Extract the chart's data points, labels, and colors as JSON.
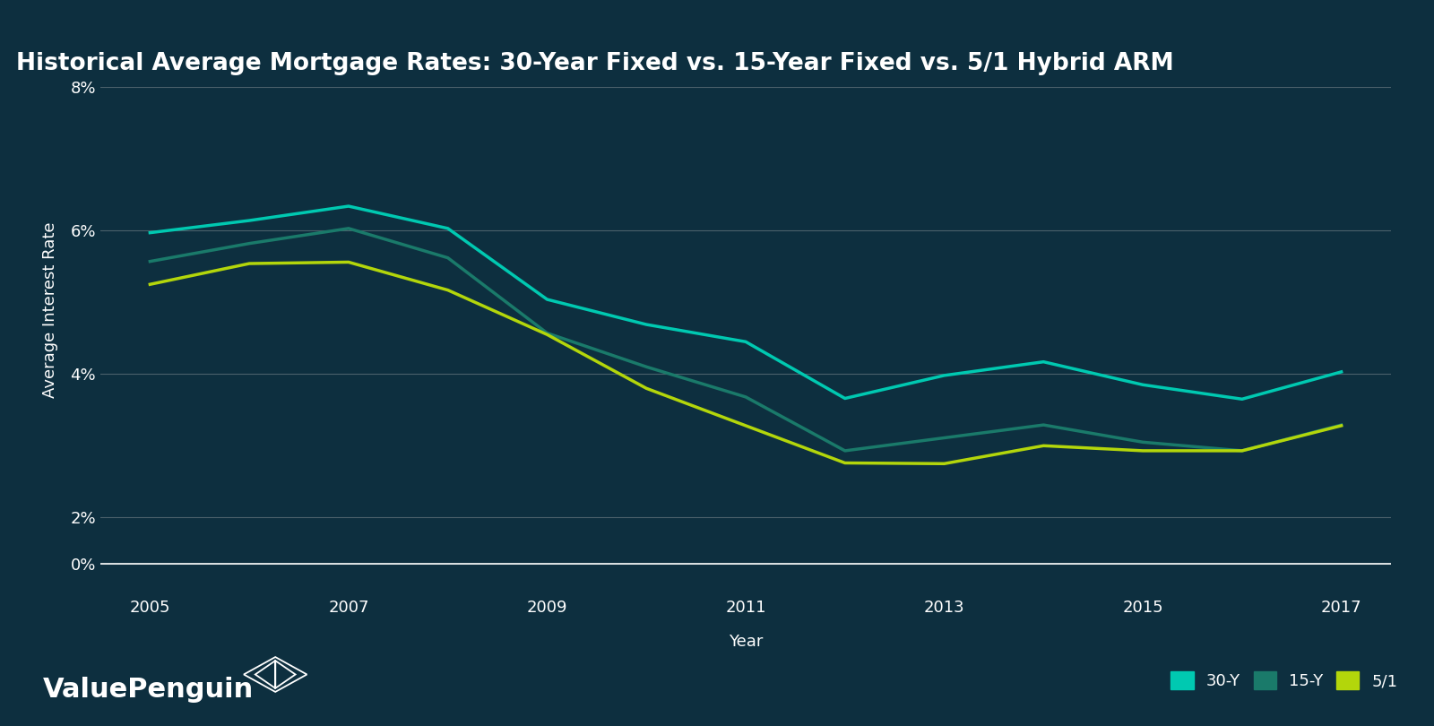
{
  "title": "Historical Average Mortgage Rates: 30-Year Fixed vs. 15-Year Fixed vs. 5/1 Hybrid ARM",
  "xlabel": "Year",
  "ylabel": "Average Interest Rate",
  "background_color": "#0d2f3f",
  "plot_bg_color": "#0d2f3f",
  "grid_color": "#c0c0c0",
  "text_color": "#ffffff",
  "years": [
    2005,
    2006,
    2007,
    2008,
    2009,
    2010,
    2011,
    2012,
    2013,
    2014,
    2015,
    2016,
    2017
  ],
  "rate_30y": [
    5.97,
    6.14,
    6.34,
    6.03,
    5.04,
    4.69,
    4.45,
    3.66,
    3.98,
    4.17,
    3.85,
    3.65,
    4.03
  ],
  "rate_15y": [
    5.57,
    5.82,
    6.03,
    5.62,
    4.57,
    4.1,
    3.68,
    2.93,
    3.11,
    3.29,
    3.05,
    2.93,
    3.29
  ],
  "rate_5_1": [
    5.25,
    5.54,
    5.56,
    5.17,
    4.55,
    3.8,
    3.28,
    2.76,
    2.75,
    3.0,
    2.93,
    2.93,
    3.28
  ],
  "color_30y": "#00c9b1",
  "color_15y": "#1a7a6a",
  "color_5_1": "#b3d60b",
  "ylim_main": [
    0.018,
    0.075
  ],
  "ylim_zero": [
    -0.002,
    0.002
  ],
  "yticks_main": [
    0.02,
    0.04,
    0.06,
    0.08
  ],
  "ytick_labels_main": [
    "2%",
    "4%",
    "6%",
    "8%"
  ],
  "ytick_zero": [
    0.0
  ],
  "ytick_labels_zero": [
    "0%"
  ],
  "xticks": [
    2005,
    2007,
    2009,
    2011,
    2013,
    2015,
    2017
  ],
  "legend_labels": [
    "30-Y",
    "15-Y",
    "5/1"
  ],
  "line_width": 2.5,
  "title_fontsize": 19,
  "label_fontsize": 13,
  "tick_fontsize": 13,
  "legend_fontsize": 13,
  "logo_text": "ValuePenguin",
  "logo_fontsize": 22,
  "xlim": [
    2004.5,
    2017.5
  ]
}
